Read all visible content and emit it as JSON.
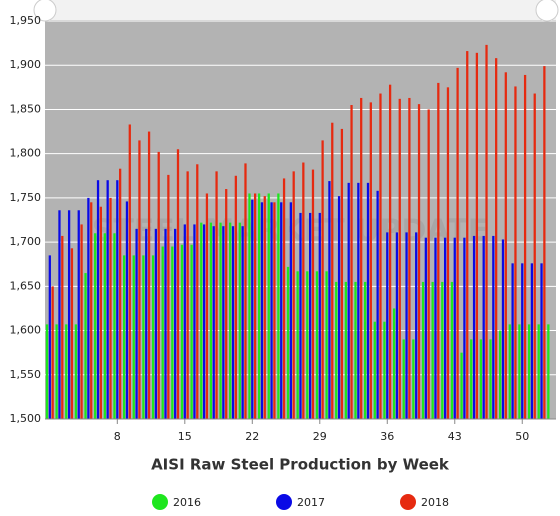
{
  "chart_data": {
    "type": "bar",
    "title": "AISI Raw Steel Production by Week",
    "watermark": "STEEL MARKET UPDATE",
    "x": [
      1,
      2,
      3,
      4,
      5,
      6,
      7,
      8,
      9,
      10,
      11,
      12,
      13,
      14,
      15,
      16,
      17,
      18,
      19,
      20,
      21,
      22,
      23,
      24,
      25,
      26,
      27,
      28,
      29,
      30,
      31,
      32,
      33,
      34,
      35,
      36,
      37,
      38,
      39,
      40,
      41,
      42,
      43,
      44,
      45,
      46,
      47,
      48,
      49,
      50,
      51,
      52,
      53
    ],
    "xlim": [
      0.5,
      53.5
    ],
    "xticks": [
      8,
      15,
      22,
      29,
      36,
      43,
      50
    ],
    "ylim": [
      1500,
      1950
    ],
    "yticks": [
      {
        "value": 1500,
        "label": "1,500"
      },
      {
        "value": 1550,
        "label": "1,550"
      },
      {
        "value": 1600,
        "label": "1,600"
      },
      {
        "value": 1650,
        "label": "1,650"
      },
      {
        "value": 1700,
        "label": "1,700"
      },
      {
        "value": 1750,
        "label": "1,750"
      },
      {
        "value": 1800,
        "label": "1,800"
      },
      {
        "value": 1850,
        "label": "1,850"
      },
      {
        "value": 1900,
        "label": "1,900"
      },
      {
        "value": 1950,
        "label": "1,950"
      }
    ],
    "grid": true,
    "series": [
      {
        "name": "2016",
        "color": "#1ee61e",
        "values": [
          1607,
          1607,
          1607,
          1607,
          1665,
          1710,
          1710,
          1710,
          1685,
          1685,
          1685,
          1685,
          1695,
          1695,
          1697,
          1697,
          1722,
          1722,
          1722,
          1722,
          1722,
          1755,
          1755,
          1755,
          1755,
          1672,
          1667,
          1667,
          1667,
          1667,
          1655,
          1655,
          1655,
          1655,
          1610,
          1610,
          1625,
          1590,
          1590,
          1655,
          1655,
          1655,
          1655,
          1575,
          1590,
          1590,
          1590,
          1600,
          1607,
          1607,
          1607,
          1607,
          1607
        ]
      },
      {
        "name": "2017",
        "color": "#0a0ae6",
        "values": [
          1685,
          1736,
          1736,
          1736,
          1750,
          1770,
          1770,
          1770,
          1746,
          1715,
          1715,
          1715,
          1715,
          1715,
          1720,
          1720,
          1720,
          1718,
          1718,
          1718,
          1718,
          1748,
          1745,
          1745,
          1745,
          1745,
          1733,
          1733,
          1733,
          1769,
          1752,
          1767,
          1767,
          1767,
          1758,
          1711,
          1711,
          1711,
          1711,
          1705,
          1705,
          1705,
          1705,
          1705,
          1707,
          1707,
          1707,
          1703,
          1676,
          1676,
          1676,
          1676,
          null
        ]
      },
      {
        "name": "2018",
        "color": "#e62a10",
        "values": [
          1650,
          1707,
          1693,
          1720,
          1745,
          1740,
          1750,
          1783,
          1833,
          1815,
          1825,
          1802,
          1776,
          1805,
          1780,
          1788,
          1755,
          1780,
          1760,
          1775,
          1789,
          1755,
          1752,
          1745,
          1772,
          1780,
          1790,
          1782,
          1815,
          1835,
          1828,
          1855,
          1863,
          1858,
          1868,
          1878,
          1862,
          1863,
          1856,
          1850,
          1880,
          1875,
          1897,
          1916,
          1914,
          1923,
          1908,
          1892,
          1876,
          1889,
          1868,
          1899,
          null
        ]
      }
    ]
  }
}
